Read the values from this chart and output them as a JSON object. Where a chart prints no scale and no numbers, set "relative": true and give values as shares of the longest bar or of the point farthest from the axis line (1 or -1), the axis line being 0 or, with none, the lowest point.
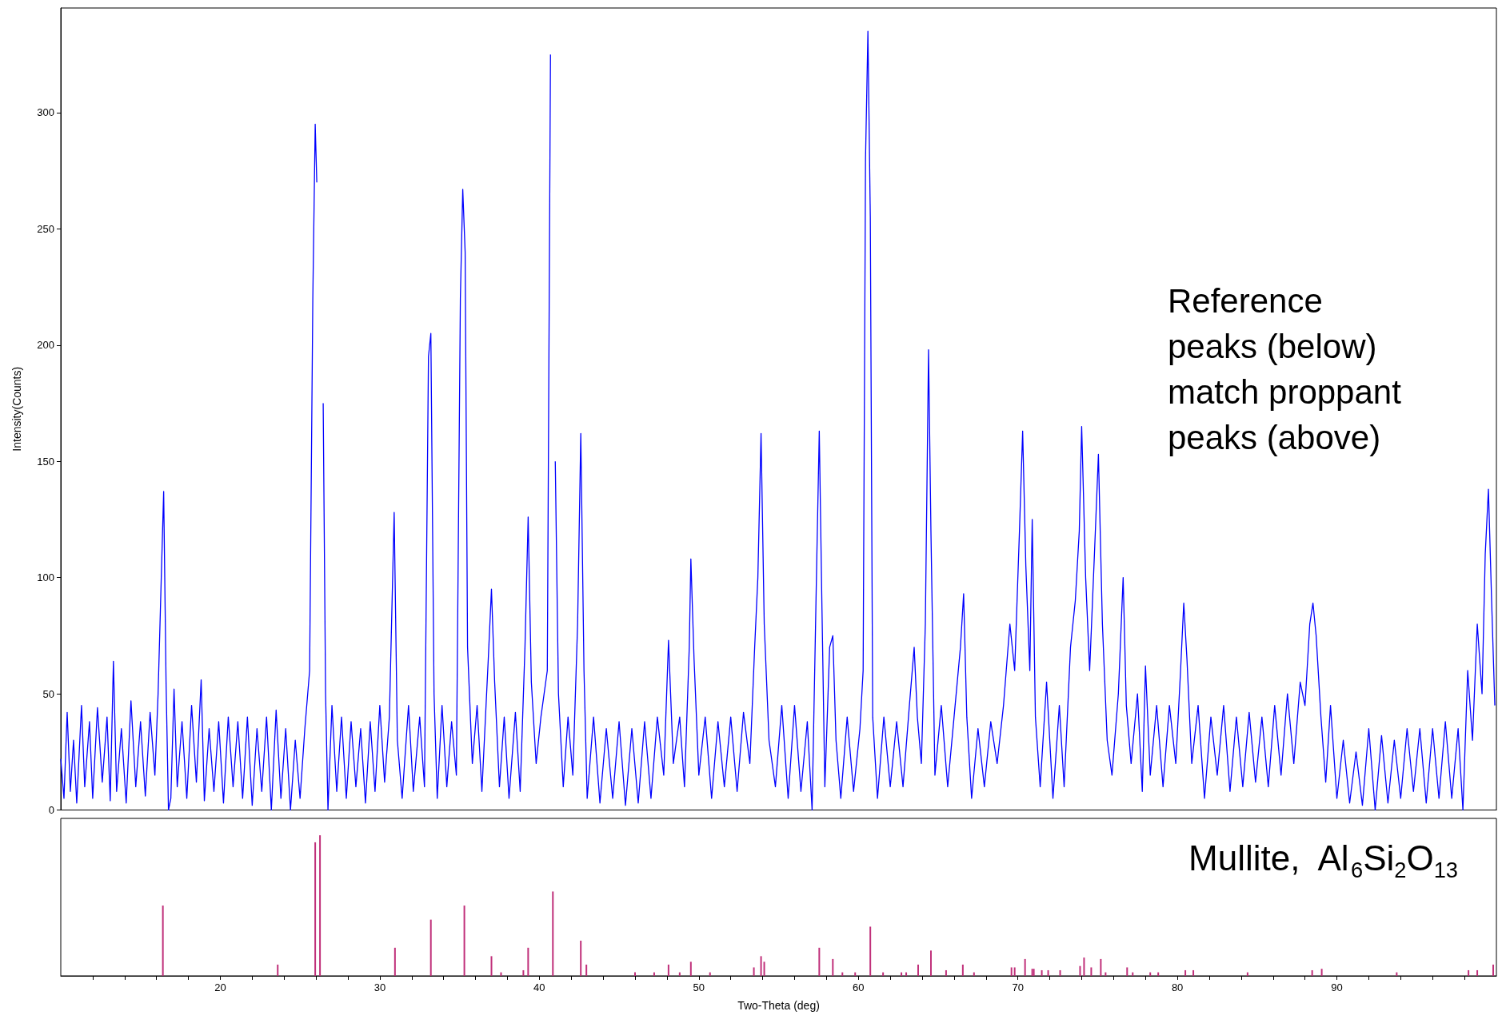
{
  "chart_data": [
    {
      "type": "line",
      "ylabel": "Intensity(Counts)",
      "xlim": [
        10,
        100
      ],
      "ylim": [
        0,
        345
      ],
      "yticks": [
        0,
        50,
        100,
        150,
        200,
        250,
        300
      ],
      "tick_labels": "y",
      "annotations": [
        "Reference peaks (below) match proppant peaks (above)"
      ],
      "series": [
        {
          "color": "#0000ff",
          "x": [
            10.0,
            10.2,
            10.4,
            10.6,
            10.8,
            11.0,
            11.3,
            11.5,
            11.8,
            12.0,
            12.3,
            12.6,
            12.9,
            13.1,
            13.3,
            13.5,
            13.8,
            14.1,
            14.4,
            14.7,
            15.0,
            15.3,
            15.6,
            15.9,
            16.1,
            16.3,
            16.45,
            16.6,
            16.75,
            16.9,
            17.1,
            17.3,
            17.6,
            17.9,
            18.2,
            18.5,
            18.8,
            19.0,
            19.3,
            19.6,
            19.9,
            20.2,
            20.5,
            20.8,
            21.1,
            21.4,
            21.7,
            22.0,
            22.3,
            22.6,
            22.9,
            23.2,
            23.5,
            23.8,
            24.1,
            24.4,
            24.7,
            25.0,
            25.3,
            25.6,
            25.8,
            25.95,
            26.05,
            26.15,
            26.3,
            26.45,
            26.6,
            26.75,
            27.0,
            27.3,
            27.6,
            27.9,
            28.2,
            28.5,
            28.8,
            29.1,
            29.4,
            29.7,
            30.0,
            30.3,
            30.6,
            30.9,
            31.1,
            31.4,
            31.8,
            32.1,
            32.5,
            32.8,
            33.05,
            33.2,
            33.4,
            33.6,
            33.9,
            34.2,
            34.5,
            34.8,
            35.05,
            35.2,
            35.35,
            35.5,
            35.8,
            36.1,
            36.4,
            36.8,
            37.0,
            37.2,
            37.5,
            37.8,
            38.1,
            38.5,
            38.8,
            39.1,
            39.3,
            39.5,
            39.8,
            40.1,
            40.5,
            40.7,
            40.85,
            41.0,
            41.2,
            41.5,
            41.8,
            42.1,
            42.4,
            42.6,
            42.8,
            43.0,
            43.4,
            43.8,
            44.2,
            44.6,
            45.0,
            45.4,
            45.8,
            46.2,
            46.6,
            47.0,
            47.4,
            47.8,
            48.1,
            48.4,
            48.8,
            49.1,
            49.4,
            49.5,
            49.7,
            50.0,
            50.4,
            50.8,
            51.2,
            51.6,
            52.0,
            52.4,
            52.8,
            53.2,
            53.5,
            53.7,
            53.9,
            54.1,
            54.4,
            54.8,
            55.2,
            55.6,
            56.0,
            56.4,
            56.8,
            57.1,
            57.4,
            57.55,
            57.7,
            57.9,
            58.2,
            58.4,
            58.6,
            58.9,
            59.3,
            59.7,
            60.1,
            60.3,
            60.45,
            60.6,
            60.75,
            60.9,
            61.2,
            61.6,
            62.0,
            62.4,
            62.8,
            63.2,
            63.5,
            63.7,
            63.95,
            64.2,
            64.4,
            64.55,
            64.8,
            65.2,
            65.6,
            66.0,
            66.4,
            66.6,
            66.8,
            67.1,
            67.5,
            67.9,
            68.3,
            68.7,
            69.1,
            69.5,
            69.8,
            70.1,
            70.3,
            70.5,
            70.75,
            70.9,
            71.1,
            71.4,
            71.8,
            72.2,
            72.6,
            72.9,
            73.3,
            73.6,
            73.85,
            74.0,
            74.25,
            74.5,
            74.8,
            75.05,
            75.3,
            75.6,
            75.9,
            76.3,
            76.6,
            76.8,
            77.1,
            77.5,
            77.8,
            78.0,
            78.3,
            78.7,
            79.1,
            79.5,
            79.9,
            80.2,
            80.4,
            80.6,
            80.9,
            81.3,
            81.7,
            82.1,
            82.5,
            82.9,
            83.3,
            83.7,
            84.1,
            84.5,
            84.9,
            85.3,
            85.7,
            86.1,
            86.5,
            86.9,
            87.3,
            87.7,
            88.0,
            88.3,
            88.5,
            88.7,
            89.0,
            89.3,
            89.6,
            90.0,
            90.4,
            90.8,
            91.2,
            91.6,
            92.0,
            92.4,
            92.8,
            93.2,
            93.6,
            94.0,
            94.4,
            94.8,
            95.2,
            95.6,
            96.0,
            96.4,
            96.8,
            97.2,
            97.6,
            97.9,
            98.2,
            98.5,
            98.8,
            99.1,
            99.3,
            99.5,
            99.7,
            99.9
          ],
          "values": [
            22,
            5,
            42,
            8,
            30,
            3,
            45,
            10,
            38,
            5,
            44,
            12,
            40,
            4,
            64,
            8,
            35,
            3,
            47,
            10,
            38,
            6,
            42,
            15,
            50,
            100,
            137,
            55,
            0,
            5,
            52,
            10,
            38,
            5,
            45,
            12,
            56,
            4,
            35,
            8,
            38,
            3,
            40,
            10,
            38,
            5,
            40,
            2,
            35,
            8,
            40,
            0,
            43,
            5,
            35,
            0,
            30,
            5,
            35,
            60,
            220,
            295,
            270,
            null,
            null,
            175,
            50,
            0,
            45,
            8,
            40,
            5,
            38,
            10,
            35,
            3,
            38,
            8,
            45,
            12,
            40,
            128,
            30,
            5,
            45,
            8,
            40,
            10,
            195,
            205,
            50,
            5,
            45,
            10,
            38,
            15,
            220,
            267,
            240,
            70,
            20,
            45,
            8,
            65,
            95,
            55,
            10,
            40,
            5,
            42,
            8,
            70,
            126,
            55,
            20,
            40,
            60,
            325,
            null,
            150,
            50,
            10,
            40,
            15,
            80,
            162,
            60,
            5,
            40,
            3,
            35,
            5,
            38,
            2,
            35,
            3,
            38,
            5,
            40,
            15,
            73,
            20,
            40,
            10,
            70,
            108,
            65,
            15,
            40,
            5,
            38,
            10,
            40,
            8,
            42,
            20,
            70,
            100,
            162,
            80,
            30,
            10,
            45,
            5,
            45,
            8,
            38,
            0,
            110,
            163,
            95,
            10,
            70,
            75,
            30,
            5,
            40,
            8,
            35,
            60,
            280,
            335,
            255,
            40,
            5,
            40,
            10,
            38,
            10,
            45,
            70,
            40,
            20,
            80,
            198,
            120,
            15,
            45,
            10,
            40,
            70,
            93,
            40,
            5,
            35,
            10,
            38,
            20,
            45,
            80,
            60,
            120,
            163,
            105,
            60,
            125,
            40,
            10,
            55,
            5,
            45,
            10,
            70,
            90,
            120,
            165,
            100,
            60,
            110,
            153,
            80,
            30,
            15,
            50,
            100,
            45,
            20,
            50,
            8,
            62,
            15,
            45,
            10,
            45,
            20,
            60,
            89,
            65,
            20,
            45,
            5,
            40,
            15,
            45,
            8,
            40,
            10,
            42,
            12,
            40,
            10,
            45,
            15,
            50,
            20,
            55,
            45,
            80,
            89,
            75,
            40,
            12,
            45,
            5,
            30,
            3,
            25,
            2,
            35,
            0,
            32,
            3,
            30,
            5,
            35,
            8,
            35,
            3,
            35,
            5,
            38,
            5,
            35,
            0,
            60,
            30,
            80,
            50,
            110,
            138,
            90,
            45
          ]
        }
      ]
    },
    {
      "type": "bar",
      "relative": true,
      "xlabel": "Two-Theta (deg)",
      "xlim": [
        10,
        100
      ],
      "tick_labels": "x",
      "xticks": [
        {
          "value": 12,
          "label": null
        },
        {
          "value": 14,
          "label": null
        },
        {
          "value": 16,
          "label": null
        },
        {
          "value": 18,
          "label": null
        },
        20,
        {
          "value": 22,
          "label": null
        },
        {
          "value": 24,
          "label": null
        },
        {
          "value": 26,
          "label": null
        },
        {
          "value": 28,
          "label": null
        },
        30,
        {
          "value": 32,
          "label": null
        },
        {
          "value": 34,
          "label": null
        },
        {
          "value": 36,
          "label": null
        },
        {
          "value": 38,
          "label": null
        },
        40,
        {
          "value": 42,
          "label": null
        },
        {
          "value": 44,
          "label": null
        },
        {
          "value": 46,
          "label": null
        },
        {
          "value": 48,
          "label": null
        },
        50,
        {
          "value": 52,
          "label": null
        },
        {
          "value": 54,
          "label": null
        },
        {
          "value": 56,
          "label": null
        },
        {
          "value": 58,
          "label": null
        },
        60,
        {
          "value": 62,
          "label": null
        },
        {
          "value": 64,
          "label": null
        },
        {
          "value": 66,
          "label": null
        },
        {
          "value": 68,
          "label": null
        },
        70,
        {
          "value": 72,
          "label": null
        },
        {
          "value": 74,
          "label": null
        },
        {
          "value": 76,
          "label": null
        },
        {
          "value": 78,
          "label": null
        },
        80,
        {
          "value": 82,
          "label": null
        },
        {
          "value": 84,
          "label": null
        },
        {
          "value": 86,
          "label": null
        },
        {
          "value": 88,
          "label": null
        },
        90,
        {
          "value": 92,
          "label": null
        },
        {
          "value": 94,
          "label": null
        },
        {
          "value": 96,
          "label": null
        },
        {
          "value": 98,
          "label": null
        }
      ],
      "annotations": [
        "Mullite,  Al$_{6}$Si$_{2}$O$_{13}$"
      ],
      "series": [
        {
          "color": "#c0307a",
          "x": [
            16.4,
            23.6,
            25.95,
            26.25,
            30.95,
            33.2,
            35.3,
            37.0,
            37.6,
            39.0,
            39.3,
            40.85,
            42.6,
            42.95,
            46.0,
            47.2,
            48.1,
            48.8,
            49.5,
            50.7,
            53.45,
            53.9,
            54.1,
            57.55,
            58.4,
            59.0,
            59.8,
            60.75,
            61.55,
            62.7,
            63.0,
            63.75,
            64.55,
            65.5,
            66.55,
            67.25,
            69.6,
            69.8,
            70.45,
            70.9,
            71.0,
            71.5,
            71.9,
            72.65,
            73.9,
            74.15,
            74.6,
            75.2,
            75.5,
            76.85,
            77.2,
            78.3,
            78.8,
            80.5,
            81.0,
            84.4,
            88.45,
            89.05,
            93.75,
            98.25,
            98.8,
            99.8
          ],
          "values": [
            0.5,
            0.08,
            0.95,
            1,
            0.2,
            0.4,
            0.5,
            0.14,
            0.025,
            0.04,
            0.2,
            0.6,
            0.25,
            0.08,
            0.025,
            0.025,
            0.08,
            0.025,
            0.1,
            0.025,
            0.06,
            0.14,
            0.1,
            0.2,
            0.12,
            0.025,
            0.025,
            0.35,
            0.025,
            0.025,
            0.025,
            0.08,
            0.18,
            0.04,
            0.08,
            0.025,
            0.06,
            0.06,
            0.12,
            0.05,
            0.05,
            0.04,
            0.04,
            0.04,
            0.07,
            0.13,
            0.06,
            0.12,
            0.025,
            0.06,
            0.025,
            0.025,
            0.025,
            0.04,
            0.04,
            0.025,
            0.04,
            0.05,
            0.025,
            0.04,
            0.04,
            0.08
          ]
        }
      ]
    }
  ]
}
